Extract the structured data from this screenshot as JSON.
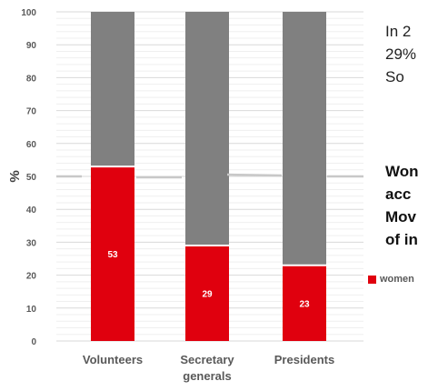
{
  "chart_data": {
    "type": "bar",
    "stacked": true,
    "categories": [
      "Volunteers",
      "Secretary generals",
      "Presidents"
    ],
    "series": [
      {
        "name": "women",
        "values": [
          53,
          29,
          23
        ],
        "color": "#e0000e"
      },
      {
        "name": "",
        "values": [
          47,
          71,
          77
        ],
        "color": "#808080"
      }
    ],
    "ylabel": "%",
    "ylim": [
      0,
      100
    ],
    "yticks": [
      0,
      10,
      20,
      30,
      40,
      50,
      60,
      70,
      80,
      90,
      100
    ],
    "grid": true,
    "reference_line": 50,
    "legend_position": "right"
  },
  "side_text": {
    "lines": [
      "In 2",
      "29%",
      "So"
    ],
    "bold_lines": [
      "Won",
      "acc",
      "Mov",
      "of in"
    ]
  },
  "legend": {
    "label": "women",
    "color": "#e0000e"
  }
}
